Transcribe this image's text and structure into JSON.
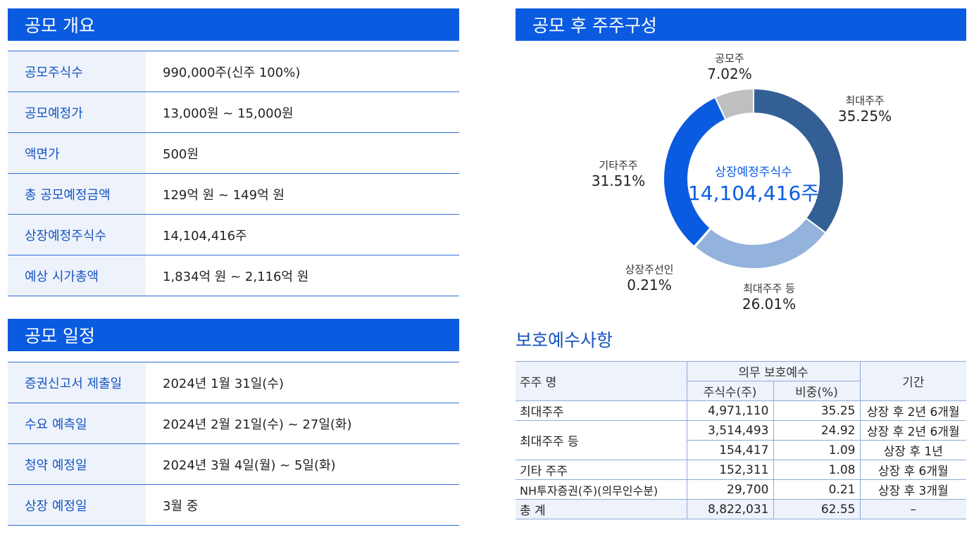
{
  "offering_overview": {
    "title": "공모 개요",
    "rows": [
      {
        "label": "공모주식수",
        "value": "990,000주(신주 100%)"
      },
      {
        "label": "공모예정가",
        "value": "13,000원 ~ 15,000원"
      },
      {
        "label": "액면가",
        "value": "500원"
      },
      {
        "label": "총 공모예정금액",
        "value": "129억 원 ~ 149억 원"
      },
      {
        "label": "상장예정주식수",
        "value": "14,104,416주"
      },
      {
        "label": "예상 시가총액",
        "value": "1,834억 원 ~ 2,116억 원"
      }
    ]
  },
  "offering_schedule": {
    "title": "공모 일정",
    "rows": [
      {
        "label": "증권신고서 제출일",
        "value": "2024년 1월 31일(수)"
      },
      {
        "label": "수요 예측일",
        "value": "2024년 2월 21일(수) ~ 27일(화)"
      },
      {
        "label": "청약 예정일",
        "value": "2024년 3월 4일(월) ~ 5일(화)"
      },
      {
        "label": "상장 예정일",
        "value": "3월 중"
      }
    ]
  },
  "shareholder_composition": {
    "title": "공모 후 주주구성",
    "center_label": "상장예정주식수",
    "center_value": "14,104,416주"
  },
  "chart_data": {
    "type": "pie",
    "title": "공모 후 주주구성",
    "center_label": "상장예정주식수",
    "center_value": "14,104,416주",
    "slices": [
      {
        "name": "최대주주",
        "label": "35.25%",
        "value": 35.25,
        "color": "#335f94"
      },
      {
        "name": "최대주주 등",
        "label": "26.01%",
        "value": 26.01,
        "color": "#93b3dc"
      },
      {
        "name": "상장주선인",
        "label": "0.21%",
        "value": 0.21,
        "color": "#1a4fc4"
      },
      {
        "name": "기타주주",
        "label": "31.51%",
        "value": 31.51,
        "color": "#0b5be0"
      },
      {
        "name": "공모주",
        "label": "7.02%",
        "value": 7.02,
        "color": "#bfbfbf"
      }
    ]
  },
  "lockup": {
    "title": "보호예수사항",
    "headers": {
      "holder": "주주 명",
      "group": "의무 보호예수",
      "shares": "주식수(주)",
      "ratio": "비중(%)",
      "period": "기간"
    },
    "rows": [
      {
        "holder": "최대주주",
        "shares": "4,971,110",
        "ratio": "35.25",
        "period": "상장 후 2년 6개월"
      },
      {
        "holder": "최대주주 등",
        "shares": "3,514,493",
        "ratio": "24.92",
        "period": "상장 후 2년 6개월"
      },
      {
        "holder": "",
        "shares": "154,417",
        "ratio": "1.09",
        "period": "상장 후 1년"
      },
      {
        "holder": "기타 주주",
        "shares": "152,311",
        "ratio": "1.08",
        "period": "상장 후 6개월"
      },
      {
        "holder": "NH투자증권(주)(의무인수분)",
        "shares": "29,700",
        "ratio": "0.21",
        "period": "상장 후 3개월"
      }
    ],
    "total": {
      "holder": "총 계",
      "shares": "8,822,031",
      "ratio": "62.55",
      "period": "–"
    }
  }
}
